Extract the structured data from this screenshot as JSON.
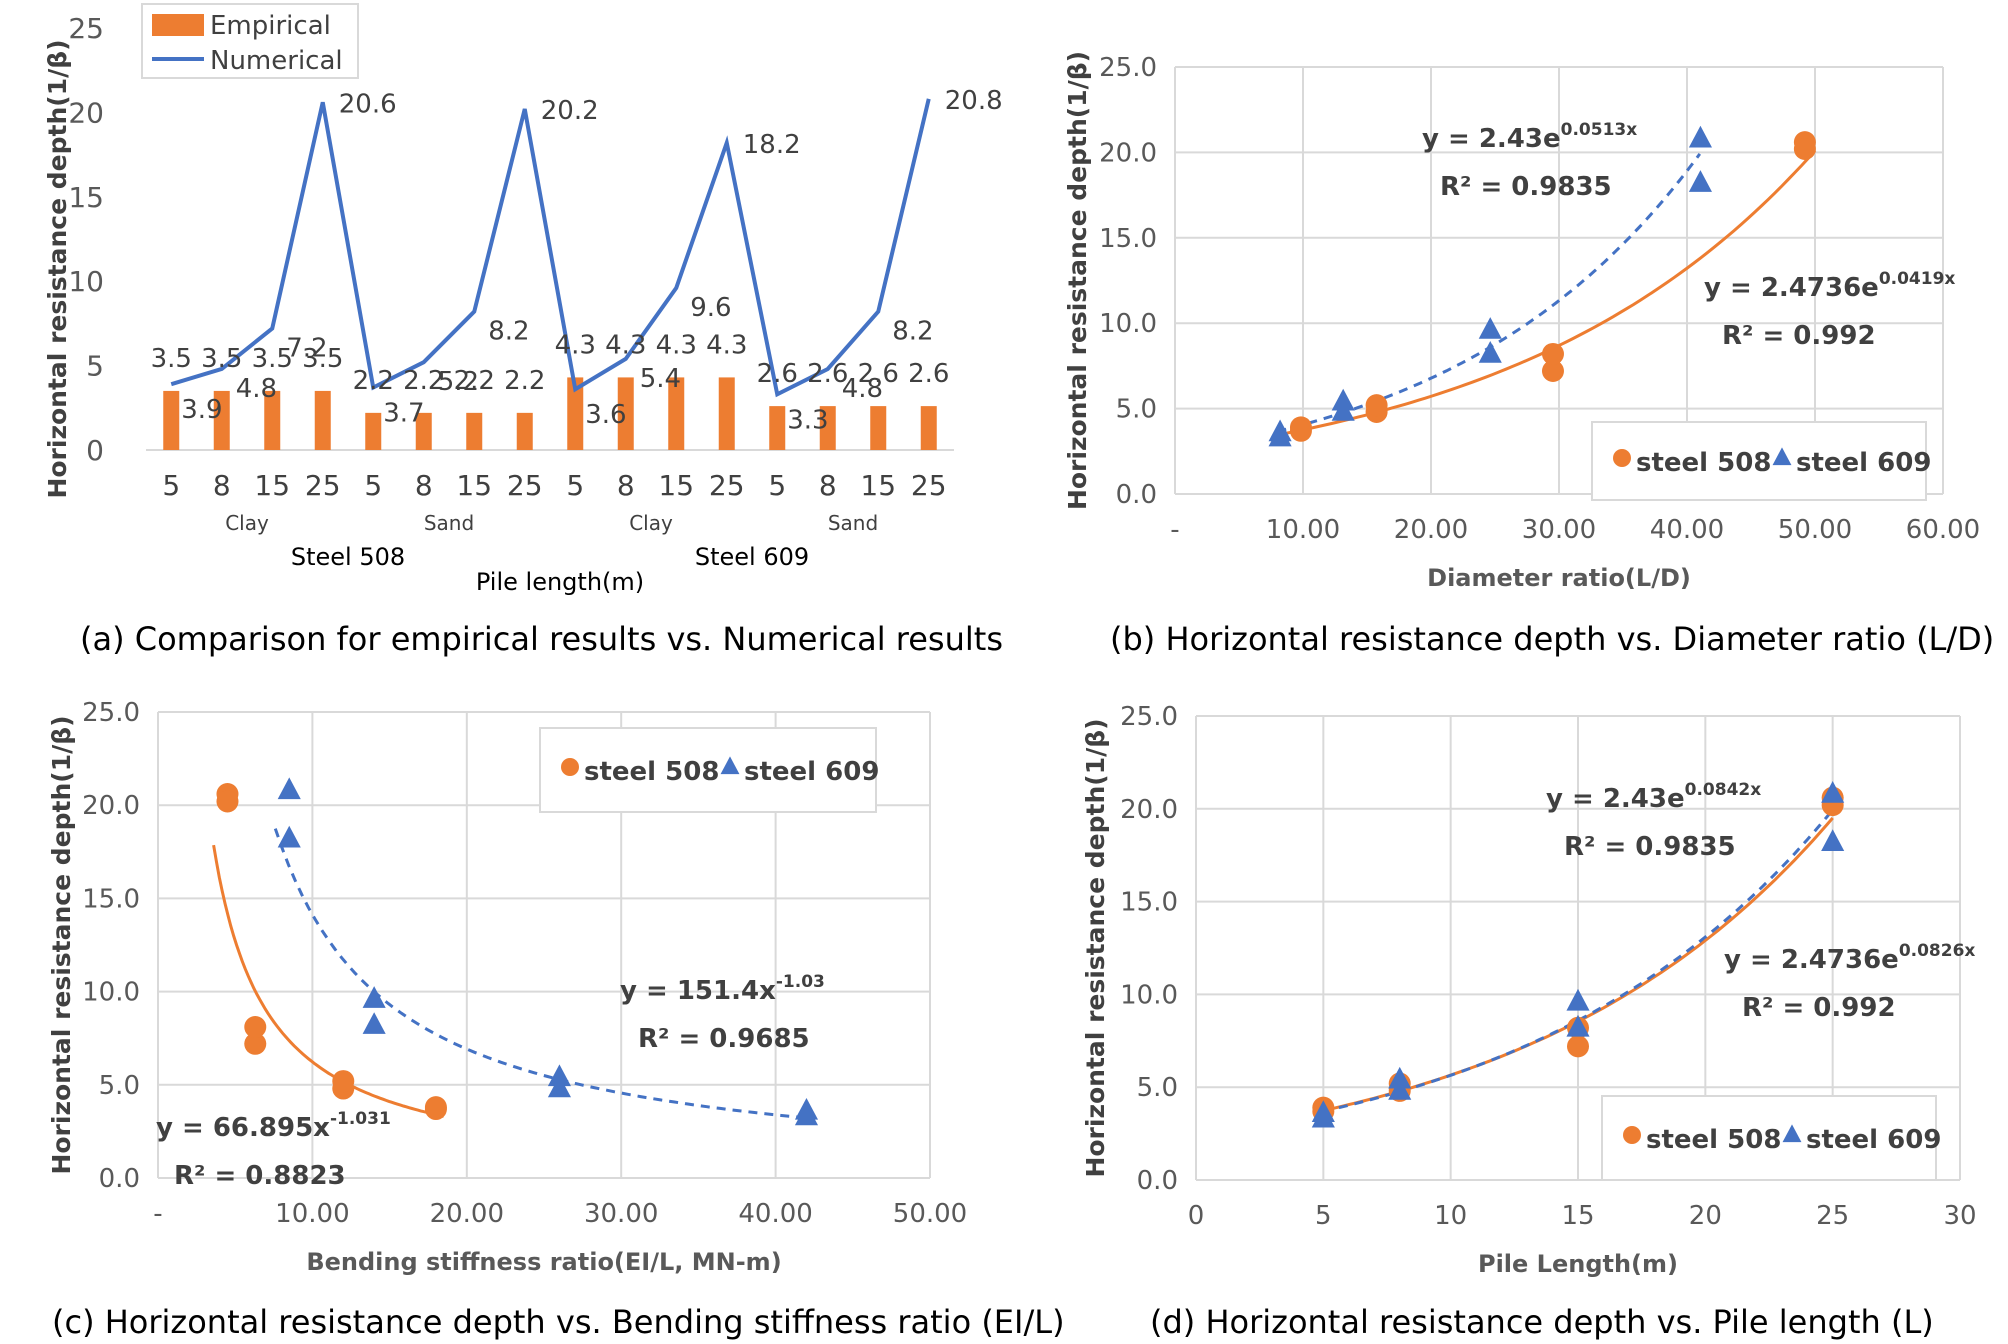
{
  "colors": {
    "orange": "#ED7D31",
    "blue": "#4472C4",
    "axis_text": "#595959",
    "grid": "#D9D9D9",
    "dark": "#404040"
  },
  "chart_data": [
    {
      "id": "a",
      "type": "bar",
      "caption": "(a) Comparison for empirical results vs. Numerical results",
      "xlabel": "Pile length(m)",
      "ylabel": "Horizontal resistance depth(1/β)",
      "ylim": [
        0,
        25
      ],
      "yticks": [
        "0",
        "5",
        "10",
        "15",
        "20",
        "25"
      ],
      "categories": [
        "5",
        "8",
        "15",
        "25",
        "5",
        "8",
        "15",
        "25",
        "5",
        "8",
        "15",
        "25",
        "5",
        "8",
        "15",
        "25"
      ],
      "groups_soil": [
        "Clay",
        "Sand",
        "Clay",
        "Sand"
      ],
      "groups_steel": [
        "Steel 508",
        "Steel 609"
      ],
      "legend": [
        "Empirical",
        "Numerical"
      ],
      "grid": false,
      "legend_position": "top-left",
      "series": [
        {
          "name": "Empirical",
          "type": "bar",
          "values": [
            3.5,
            3.5,
            3.5,
            3.5,
            2.2,
            2.2,
            2.2,
            2.2,
            4.3,
            4.3,
            4.3,
            4.3,
            2.6,
            2.6,
            2.6,
            2.6
          ],
          "labels": [
            "3.5",
            "3.5",
            "3.5",
            "3.5",
            "2.2",
            "2.2",
            "2.2",
            "2.2",
            "4.3",
            "4.3",
            "4.3",
            "4.3",
            "2.6",
            "2.6",
            "2.6",
            "2.6"
          ]
        },
        {
          "name": "Numerical",
          "type": "line",
          "values": [
            3.9,
            4.8,
            7.2,
            20.6,
            3.7,
            5.2,
            8.2,
            20.2,
            3.6,
            5.4,
            9.6,
            18.2,
            3.3,
            4.8,
            8.2,
            20.8
          ],
          "labels": [
            "3.9",
            "4.8",
            "7.2",
            "20.6",
            "3.7",
            "5.2",
            "8.2",
            "20.2",
            "3.6",
            "5.4",
            "9.6",
            "18.2",
            "3.3",
            "4.8",
            "8.2",
            "20.8"
          ]
        }
      ]
    },
    {
      "id": "b",
      "type": "scatter",
      "caption": "(b) Horizontal resistance depth vs. Diameter ratio (L/D)",
      "xlabel": "Diameter ratio(L/D)",
      "ylabel": "Horizontal resistance depth(1/β)",
      "xlim": [
        0,
        60
      ],
      "ylim": [
        0,
        25
      ],
      "xticks": [
        "-",
        "10.00",
        "20.00",
        "30.00",
        "40.00",
        "50.00",
        "60.00"
      ],
      "yticks": [
        "0.0",
        "5.0",
        "10.0",
        "15.0",
        "20.0",
        "25.0"
      ],
      "grid": true,
      "legend_position": "bottom-right",
      "series": [
        {
          "name": "steel 508",
          "marker": "circle",
          "x": [
            9.84,
            9.84,
            15.75,
            15.75,
            29.53,
            29.53,
            49.21,
            49.21
          ],
          "y": [
            3.9,
            3.7,
            4.8,
            5.2,
            7.2,
            8.2,
            20.6,
            20.2
          ],
          "fit": {
            "kind": "exp",
            "a": 2.4736,
            "b": 0.0419,
            "x_from": 8,
            "x_to": 50,
            "dashed": false
          }
        },
        {
          "name": "steel 609",
          "marker": "triangle",
          "x": [
            8.21,
            8.21,
            13.14,
            13.14,
            24.63,
            24.63,
            41.05,
            41.05
          ],
          "y": [
            3.6,
            3.3,
            5.4,
            4.8,
            9.6,
            8.2,
            18.2,
            20.8
          ],
          "fit": {
            "kind": "exp",
            "a": 2.43,
            "b": 0.0513,
            "x_from": 8,
            "x_to": 41,
            "dashed": true
          }
        }
      ],
      "annotations": [
        {
          "series": "steel 609",
          "eq_base": "y = 2.43e",
          "eq_exp": "0.0513x",
          "r2": "R² = 0.9835"
        },
        {
          "series": "steel 508",
          "eq_base": "y = 2.4736e",
          "eq_exp": "0.0419x",
          "r2": "R² = 0.992"
        }
      ]
    },
    {
      "id": "c",
      "type": "scatter",
      "caption": "(c) Horizontal resistance depth vs. Bending stiffness ratio (EI/L)",
      "xlabel": "Bending stiffness ratio(EI/L, MN-m)",
      "ylabel": "Horizontal resistance depth(1/β)",
      "xlim": [
        0,
        50
      ],
      "ylim": [
        0,
        25
      ],
      "xticks": [
        "-",
        "10.00",
        "20.00",
        "30.00",
        "40.00",
        "50.00"
      ],
      "yticks": [
        "0.0",
        "5.0",
        "10.0",
        "15.0",
        "20.0",
        "25.0"
      ],
      "grid": true,
      "legend_position": "top-right",
      "series": [
        {
          "name": "steel 508",
          "marker": "circle",
          "x": [
            18.0,
            18.0,
            12.0,
            12.0,
            6.3,
            6.3,
            4.5,
            4.5
          ],
          "y": [
            3.7,
            3.8,
            4.8,
            5.2,
            7.2,
            8.1,
            20.6,
            20.2
          ],
          "fit": {
            "kind": "power",
            "a": 66.895,
            "b": -1.031,
            "x_from": 3.6,
            "x_to": 18.5,
            "dashed": false
          }
        },
        {
          "name": "steel 609",
          "marker": "triangle",
          "x": [
            42.0,
            42.0,
            26.0,
            26.0,
            14.0,
            14.0,
            8.5,
            8.5
          ],
          "y": [
            3.6,
            3.3,
            5.4,
            4.8,
            9.6,
            8.2,
            18.2,
            20.8
          ],
          "fit": {
            "kind": "power",
            "a": 151.4,
            "b": -1.03,
            "x_from": 7.6,
            "x_to": 42,
            "dashed": true
          }
        }
      ],
      "annotations": [
        {
          "series": "steel 609",
          "eq_base": "y = 151.4x",
          "eq_exp": "-1.03",
          "r2": "R² = 0.9685"
        },
        {
          "series": "steel 508",
          "eq_base": "y = 66.895x",
          "eq_exp": "-1.031",
          "r2": "R² = 0.8823"
        }
      ]
    },
    {
      "id": "d",
      "type": "scatter",
      "caption": "(d) Horizontal resistance depth vs. Pile length (L)",
      "xlabel": "Pile Length(m)",
      "ylabel": "Horizontal resistance depth(1/β)",
      "xlim": [
        0,
        30
      ],
      "ylim": [
        0,
        25
      ],
      "xticks": [
        "0",
        "5",
        "10",
        "15",
        "20",
        "25",
        "30"
      ],
      "yticks": [
        "0.0",
        "5.0",
        "10.0",
        "15.0",
        "20.0",
        "25.0"
      ],
      "grid": true,
      "legend_position": "bottom-right",
      "series": [
        {
          "name": "steel 508",
          "marker": "circle",
          "x": [
            5,
            5,
            8,
            8,
            15,
            15,
            25,
            25
          ],
          "y": [
            3.9,
            3.7,
            4.8,
            5.2,
            7.2,
            8.2,
            20.6,
            20.2
          ],
          "fit": {
            "kind": "exp",
            "a": 2.4736,
            "b": 0.0826,
            "x_from": 5,
            "x_to": 25,
            "dashed": false
          }
        },
        {
          "name": "steel 609",
          "marker": "triangle",
          "x": [
            5,
            5,
            8,
            8,
            15,
            15,
            25,
            25
          ],
          "y": [
            3.6,
            3.3,
            5.4,
            4.8,
            9.6,
            8.2,
            18.2,
            20.8
          ],
          "fit": {
            "kind": "exp",
            "a": 2.43,
            "b": 0.0842,
            "x_from": 5,
            "x_to": 25,
            "dashed": true
          }
        }
      ],
      "annotations": [
        {
          "series": "steel 609",
          "eq_base": "y = 2.43e",
          "eq_exp": "0.0842x",
          "r2": "R² = 0.9835"
        },
        {
          "series": "steel 508",
          "eq_base": "y = 2.4736e",
          "eq_exp": "0.0826x",
          "r2": "R² = 0.992"
        }
      ]
    }
  ]
}
